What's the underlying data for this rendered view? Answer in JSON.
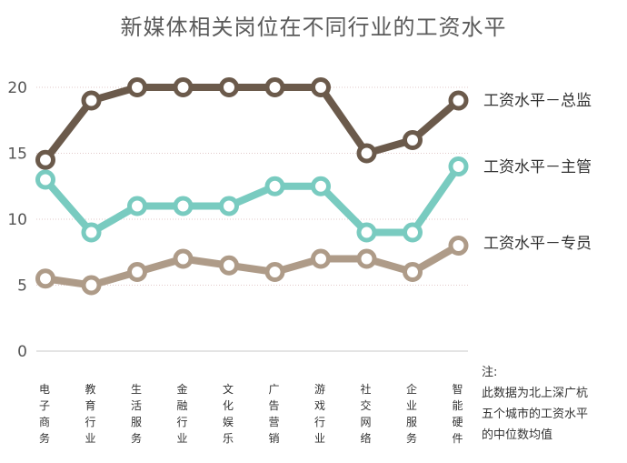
{
  "chart_data": {
    "type": "line",
    "title": "新媒体相关岗位在不同行业的工资水平",
    "categories": [
      "电子商务",
      "教育行业",
      "生活服务",
      "金融行业",
      "文化娱乐",
      "广告营销",
      "游戏行业",
      "社交网络",
      "企业服务",
      "智能硬件"
    ],
    "ylim": [
      0,
      20
    ],
    "yticks": [
      0,
      5,
      10,
      15,
      20
    ],
    "grid": "horizontal dotted",
    "legend_placement": "right, label at end of each line",
    "series": [
      {
        "name": "工资水平－总监",
        "color": "#6b5a4b",
        "values": [
          14.5,
          19,
          20,
          20,
          20,
          20,
          20,
          15,
          16,
          19
        ]
      },
      {
        "name": "工资水平－主管",
        "color": "#79cbc0",
        "values": [
          13,
          9,
          11,
          11,
          11,
          12.5,
          12.5,
          9,
          9,
          14
        ]
      },
      {
        "name": "工资水平－专员",
        "color": "#ae9b88",
        "values": [
          5.5,
          5,
          6,
          7,
          6.5,
          6,
          7,
          7,
          6,
          8
        ]
      }
    ]
  },
  "note": {
    "heading": "注:",
    "lines": [
      "此数据为北上深广杭",
      "五个城市的工资水平",
      "的中位数均值"
    ]
  }
}
